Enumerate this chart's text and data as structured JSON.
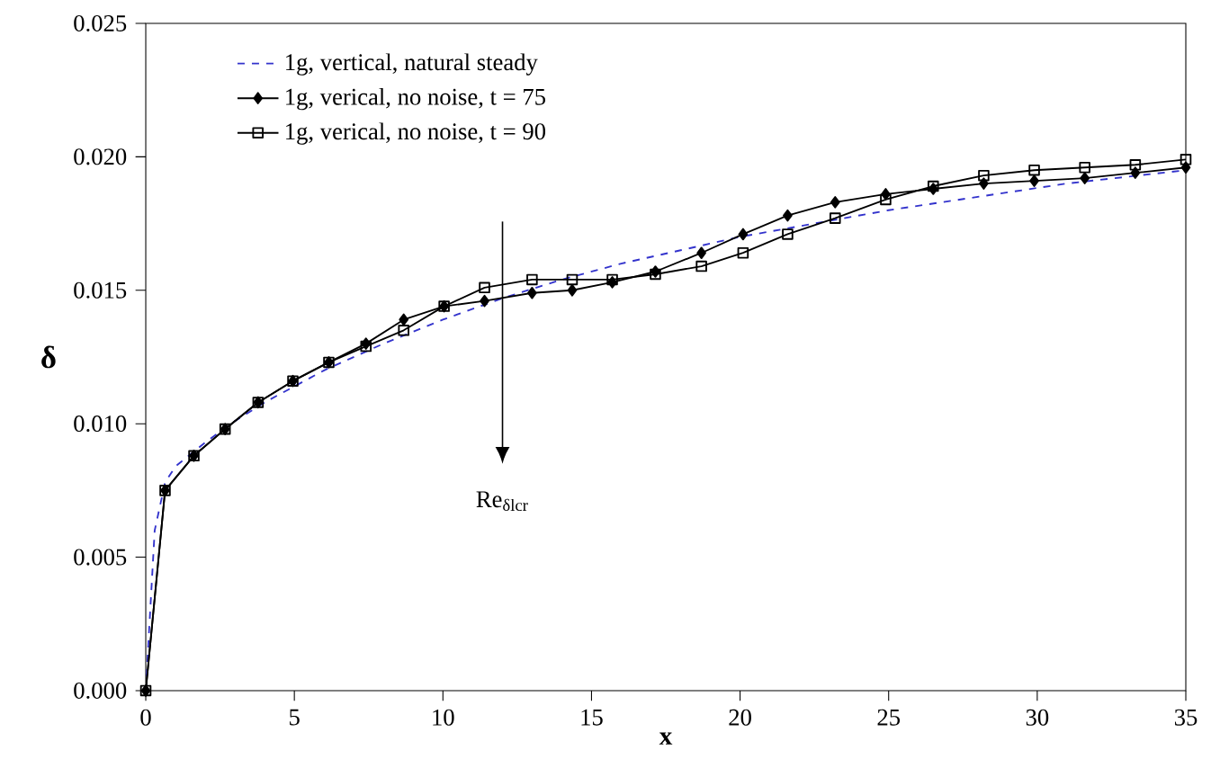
{
  "chart_data": {
    "type": "line",
    "xlabel": "x",
    "ylabel": "δ",
    "xlim": [
      0,
      35
    ],
    "xticks": [
      0,
      5,
      10,
      15,
      20,
      25,
      30,
      35
    ],
    "ylim": [
      0,
      0.025
    ],
    "yticks": [
      {
        "value": 0,
        "label": "0.000"
      },
      {
        "value": 0.005,
        "label": "0.005"
      },
      {
        "value": 0.01,
        "label": "0.010"
      },
      {
        "value": 0.015,
        "label": "0.015"
      },
      {
        "value": 0.02,
        "label": "0.020"
      },
      {
        "value": 0.025,
        "label": "0.025"
      }
    ],
    "grid": false,
    "legend": "top left",
    "annotations": [
      "Re$_{δlcr}$"
    ],
    "series": [
      {
        "name": "1g, vertical, natural steady",
        "color": "#3333cc",
        "marker": "none",
        "line_style": "dashed",
        "x": [
          0,
          0.3,
          0.65,
          1,
          2,
          3,
          4,
          5,
          6,
          8,
          10,
          12,
          14,
          16,
          18,
          20,
          22,
          25,
          28,
          31,
          35
        ],
        "values": [
          0,
          0.006,
          0.0078,
          0.0084,
          0.0093,
          0.0101,
          0.0108,
          0.0114,
          0.012,
          0.013,
          0.0139,
          0.0147,
          0.0154,
          0.016,
          0.0165,
          0.017,
          0.0174,
          0.018,
          0.0185,
          0.019,
          0.0195
        ]
      },
      {
        "name": "1g, verical, no noise, t = 75",
        "color": "#000000",
        "marker": "diamond",
        "line_style": "solid",
        "x": [
          0,
          0.65,
          1.62,
          2.67,
          3.78,
          4.95,
          6.16,
          7.41,
          8.68,
          10.04,
          11.4,
          13.0,
          14.35,
          15.7,
          17.15,
          18.7,
          20.1,
          21.6,
          23.2,
          24.9,
          26.5,
          28.2,
          29.9,
          31.6,
          33.3,
          35
        ],
        "values": [
          0,
          0.0075,
          0.0088,
          0.0098,
          0.0108,
          0.0116,
          0.0123,
          0.013,
          0.0139,
          0.0144,
          0.0146,
          0.0149,
          0.015,
          0.0153,
          0.0157,
          0.0164,
          0.0171,
          0.0178,
          0.0183,
          0.0186,
          0.0188,
          0.019,
          0.0191,
          0.0192,
          0.0194,
          0.0196
        ]
      },
      {
        "name": "1g, verical, no noise, t = 90",
        "color": "#000000",
        "marker": "square",
        "line_style": "solid",
        "x": [
          0,
          0.65,
          1.62,
          2.67,
          3.78,
          4.95,
          6.16,
          7.41,
          8.68,
          10.04,
          11.4,
          13.0,
          14.35,
          15.7,
          17.15,
          18.7,
          20.1,
          21.6,
          23.2,
          24.9,
          26.5,
          28.2,
          29.9,
          31.6,
          33.3,
          35
        ],
        "values": [
          0,
          0.0075,
          0.0088,
          0.0098,
          0.0108,
          0.0116,
          0.0123,
          0.0129,
          0.0135,
          0.0144,
          0.0151,
          0.0154,
          0.0154,
          0.0154,
          0.0156,
          0.0159,
          0.0164,
          0.0171,
          0.0177,
          0.0184,
          0.0189,
          0.0193,
          0.0195,
          0.0196,
          0.0197,
          0.0199
        ]
      }
    ]
  }
}
